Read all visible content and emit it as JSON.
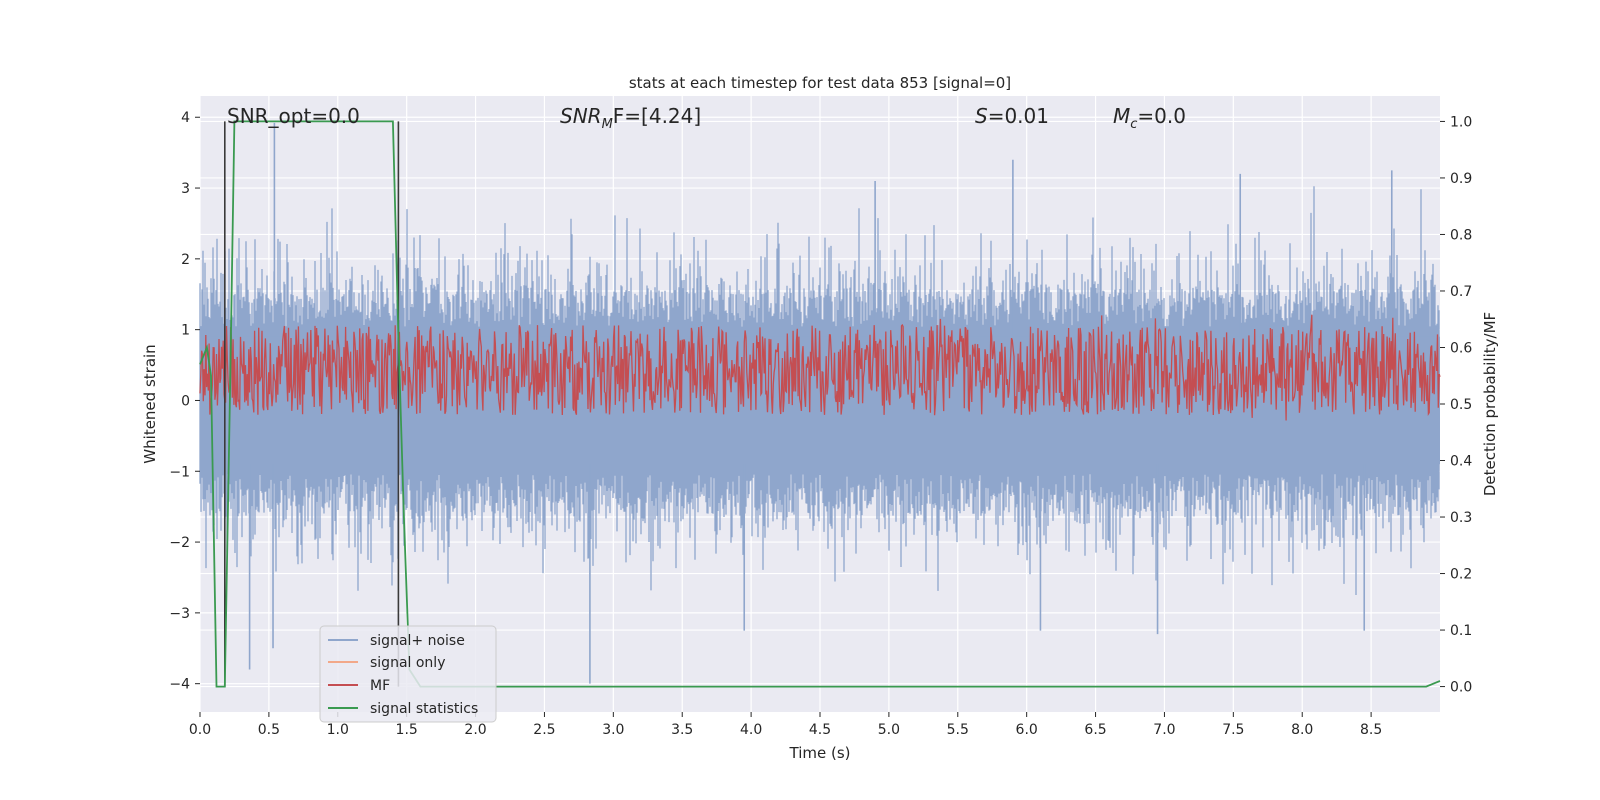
{
  "chart_data": {
    "type": "line",
    "title": "stats at each timestep for test data 853 [signal=0]",
    "xlabel": "Time (s)",
    "ylabel": "Whitened strain",
    "y2label": "Detection probability/MF",
    "xlim": [
      0.0,
      9.0
    ],
    "ylim": [
      -4.4,
      4.3
    ],
    "y2lim": [
      -0.045,
      1.045
    ],
    "xticks": [
      0.0,
      0.5,
      1.0,
      1.5,
      2.0,
      2.5,
      3.0,
      3.5,
      4.0,
      4.5,
      5.0,
      5.5,
      6.0,
      6.5,
      7.0,
      7.5,
      8.0,
      8.5
    ],
    "xtick_labels": [
      "0.0",
      "0.5",
      "1.0",
      "1.5",
      "2.0",
      "2.5",
      "3.0",
      "3.5",
      "4.0",
      "4.5",
      "5.0",
      "5.5",
      "6.0",
      "6.5",
      "7.0",
      "7.5",
      "8.0",
      "8.5"
    ],
    "yticks": [
      4,
      3,
      2,
      1,
      0,
      -1,
      -2,
      -3,
      -4
    ],
    "ytick_labels": [
      "4",
      "3",
      "2",
      "1",
      "0",
      "−1",
      "−2",
      "−3",
      "−4"
    ],
    "y2ticks": [
      1.0,
      0.9,
      0.8,
      0.7,
      0.6,
      0.5,
      0.4,
      0.3,
      0.2,
      0.1,
      0.0
    ],
    "y2tick_labels": [
      "1.0",
      "0.9",
      "0.8",
      "0.7",
      "0.6",
      "0.5",
      "0.4",
      "0.3",
      "0.2",
      "0.1",
      "0.0"
    ],
    "annotations": {
      "snr_opt": "SNR_opt=0.0",
      "snr_mf_base": "SNR",
      "snr_mf_sub": "M",
      "snr_mf_rest": "F=[4.24]",
      "s_var": "S",
      "s_rest": "=0.01",
      "mc_base": "M",
      "mc_sub": "c",
      "mc_rest": "=0.0"
    },
    "series": [
      {
        "name": "signal+ noise",
        "color": "#8fa6cc",
        "description": "whitened noisy strain, roughly spanning -1.6 to 1.6 with spikes to about +/-3.5",
        "envelope": {
          "typical_amplitude": 1.6,
          "max_spike": 3.8,
          "seed": 853
        },
        "spikes": [
          {
            "x": 0.54,
            "y": 3.92
          },
          {
            "x": 0.53,
            "y": -3.5
          },
          {
            "x": 0.36,
            "y": -3.8
          },
          {
            "x": 2.83,
            "y": -4.0
          },
          {
            "x": 5.9,
            "y": 3.4
          },
          {
            "x": 4.9,
            "y": 3.1
          },
          {
            "x": 8.45,
            "y": -3.25
          },
          {
            "x": 6.1,
            "y": -3.25
          },
          {
            "x": 6.95,
            "y": -3.3
          },
          {
            "x": 3.95,
            "y": -3.25
          },
          {
            "x": 7.55,
            "y": 3.2
          },
          {
            "x": 8.65,
            "y": 3.25
          }
        ]
      },
      {
        "name": "signal only",
        "color": "#f2a889",
        "values_description": "zero signal (flat at 0)"
      },
      {
        "name": "MF",
        "color": "#c44e52",
        "axis": "right",
        "center": 0.56,
        "amplitude": 0.08,
        "seed": 17
      },
      {
        "name": "signal statistics",
        "color": "#3a9a50",
        "axis": "right",
        "x": [
          0.0,
          0.05,
          0.08,
          0.12,
          0.18,
          0.22,
          0.25,
          0.3,
          1.4,
          1.44,
          1.48,
          1.52,
          1.6,
          8.9,
          9.0
        ],
        "y": [
          0.57,
          0.6,
          0.55,
          0.0,
          0.0,
          0.55,
          1.0,
          1.0,
          1.0,
          0.62,
          0.3,
          0.03,
          0.0,
          0.0,
          0.01
        ]
      }
    ],
    "vertical_markers": [
      {
        "x": 0.18,
        "y_top": 1.0,
        "y_bottom": 0.0,
        "color": "#3a3a3a"
      },
      {
        "x": 1.44,
        "y_top": 1.0,
        "y_bottom": 0.0,
        "color": "#3a3a3a"
      }
    ],
    "legend": {
      "placement": "lower-left",
      "entries": [
        {
          "label": "signal+ noise",
          "color": "#8fa6cc"
        },
        {
          "label": "signal only",
          "color": "#f2a889"
        },
        {
          "label": "MF",
          "color": "#c44e52"
        },
        {
          "label": "signal statistics",
          "color": "#3a9a50"
        }
      ]
    },
    "style": {
      "background": "#eaeaf2",
      "grid_color": "#ffffff"
    }
  }
}
